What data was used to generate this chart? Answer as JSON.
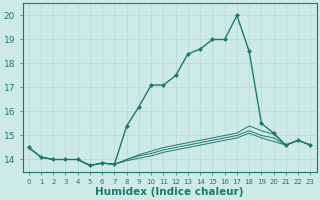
{
  "xlabel": "Humidex (Indice chaleur)",
  "x_values": [
    0,
    1,
    2,
    3,
    4,
    5,
    6,
    7,
    8,
    9,
    10,
    11,
    12,
    13,
    14,
    15,
    16,
    17,
    18,
    19,
    20,
    21,
    22,
    23
  ],
  "lines": [
    {
      "y": [
        14.5,
        14.1,
        14.0,
        14.0,
        14.0,
        13.75,
        13.85,
        13.8,
        15.4,
        16.2,
        17.1,
        17.1,
        17.5,
        18.4,
        18.6,
        19.0,
        19.0,
        20.0,
        18.5,
        15.5,
        15.1,
        14.6,
        14.8,
        14.6
      ],
      "color": "#1a7a6e",
      "marker": "D",
      "markersize": 2.0,
      "linewidth": 1.0
    },
    {
      "y": [
        14.5,
        14.1,
        14.0,
        14.0,
        14.0,
        13.75,
        13.85,
        13.8,
        14.0,
        14.2,
        14.35,
        14.5,
        14.6,
        14.7,
        14.8,
        14.9,
        15.0,
        15.1,
        15.4,
        15.2,
        15.05,
        14.6,
        14.8,
        14.6
      ],
      "color": "#1a7a6e",
      "marker": null,
      "linewidth": 0.7
    },
    {
      "y": [
        14.5,
        14.1,
        14.0,
        14.0,
        14.0,
        13.75,
        13.85,
        13.8,
        14.0,
        14.15,
        14.25,
        14.4,
        14.5,
        14.6,
        14.7,
        14.8,
        14.9,
        15.0,
        15.2,
        15.0,
        14.9,
        14.6,
        14.8,
        14.6
      ],
      "color": "#1a7a6e",
      "marker": null,
      "linewidth": 0.7
    },
    {
      "y": [
        14.5,
        14.1,
        14.0,
        14.0,
        14.0,
        13.75,
        13.85,
        13.8,
        13.95,
        14.05,
        14.15,
        14.3,
        14.4,
        14.5,
        14.6,
        14.7,
        14.8,
        14.9,
        15.1,
        14.9,
        14.75,
        14.6,
        14.8,
        14.6
      ],
      "color": "#1a7a6e",
      "marker": null,
      "linewidth": 0.7
    }
  ],
  "background_color": "#ceeae6",
  "grid_color": "#b8d8d4",
  "xlim": [
    -0.5,
    23.5
  ],
  "ylim": [
    13.5,
    20.5
  ],
  "yticks": [
    14,
    15,
    16,
    17,
    18,
    19,
    20
  ],
  "xticks": [
    0,
    1,
    2,
    3,
    4,
    5,
    6,
    7,
    8,
    9,
    10,
    11,
    12,
    13,
    14,
    15,
    16,
    17,
    18,
    19,
    20,
    21,
    22,
    23
  ],
  "xtick_labels": [
    "0",
    "1",
    "2",
    "3",
    "4",
    "5",
    "6",
    "7",
    "8",
    "9",
    "10",
    "11",
    "12",
    "13",
    "14",
    "15",
    "16",
    "17",
    "18",
    "19",
    "20",
    "21",
    "22",
    "23"
  ],
  "axis_color": "#1a7a6e",
  "xtick_fontsize": 5.0,
  "ytick_fontsize": 6.5,
  "xlabel_fontsize": 7.5
}
